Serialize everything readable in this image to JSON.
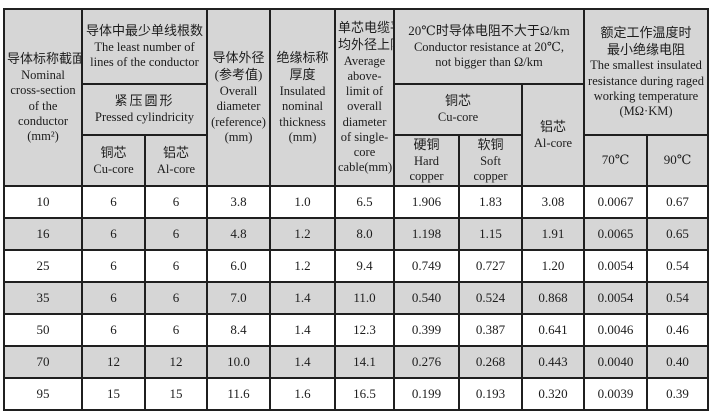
{
  "table": {
    "headers": {
      "nominal": {
        "zh": "导体标称截面",
        "en": "Nominal cross-section of the conductor",
        "unit": "(mm²)"
      },
      "least_lines": {
        "zh": "导体中最少单线根数",
        "en": "The least number of lines of the conductor"
      },
      "pressed": {
        "zh": "紧压圆形",
        "en": "Pressed cylindricity"
      },
      "cu_core_count": {
        "zh": "铜芯",
        "en": "Cu-core"
      },
      "al_core_count": {
        "zh": "铝芯",
        "en": "Al-core"
      },
      "overall_diameter": {
        "zh1": "导体外径",
        "zh2": "(参考值)",
        "en": "Overall diameter (reference) (mm)"
      },
      "insulated_thickness": {
        "zh1": "绝缘标称",
        "zh2": "厚度",
        "en": "Insulated nominal thickness (mm)"
      },
      "average_limit": {
        "zh1": "单芯电缆平",
        "zh2": "均外径上限",
        "en": "Average above-limit of overall diameter of single-core cable(mm)"
      },
      "resistance": {
        "zh": "20℃时导体电阻不大于Ω/km",
        "en1": "Conductor resistance at 20℃,",
        "en2": "not bigger than  Ω/km"
      },
      "res_cu": {
        "zh": "铜芯",
        "en": "Cu-core"
      },
      "res_al": {
        "zh": "铝芯",
        "en": "Al-core"
      },
      "hard_copper": {
        "zh": "硬铜",
        "en": "Hard copper"
      },
      "soft_copper": {
        "zh": "软铜",
        "en": "Soft copper"
      },
      "insulation_resistance": {
        "zh1": "额定工作温度时",
        "zh2": "最小绝缘电阻",
        "en": "The smallest insulated resistance during raged working temperature",
        "unit": "(MΩ·KM)"
      },
      "t70": "70℃",
      "t90": "90℃"
    },
    "rows": [
      [
        "10",
        "6",
        "6",
        "3.8",
        "1.0",
        "6.5",
        "1.906",
        "1.83",
        "3.08",
        "0.0067",
        "0.67"
      ],
      [
        "16",
        "6",
        "6",
        "4.8",
        "1.2",
        "8.0",
        "1.198",
        "1.15",
        "1.91",
        "0.0065",
        "0.65"
      ],
      [
        "25",
        "6",
        "6",
        "6.0",
        "1.2",
        "9.4",
        "0.749",
        "0.727",
        "1.20",
        "0.0054",
        "0.54"
      ],
      [
        "35",
        "6",
        "6",
        "7.0",
        "1.4",
        "11.0",
        "0.540",
        "0.524",
        "0.868",
        "0.0054",
        "0.54"
      ],
      [
        "50",
        "6",
        "6",
        "8.4",
        "1.4",
        "12.3",
        "0.399",
        "0.387",
        "0.641",
        "0.0046",
        "0.46"
      ],
      [
        "70",
        "12",
        "12",
        "10.0",
        "1.4",
        "14.1",
        "0.276",
        "0.268",
        "0.443",
        "0.0040",
        "0.40"
      ],
      [
        "95",
        "15",
        "15",
        "11.6",
        "1.6",
        "16.5",
        "0.199",
        "0.193",
        "0.320",
        "0.0039",
        "0.39"
      ]
    ],
    "colors": {
      "header_bg": "#d6d6d6",
      "row_alt_bg": "#d6d6d6",
      "row_bg": "#ffffff",
      "border": "#1f1f1f"
    }
  }
}
